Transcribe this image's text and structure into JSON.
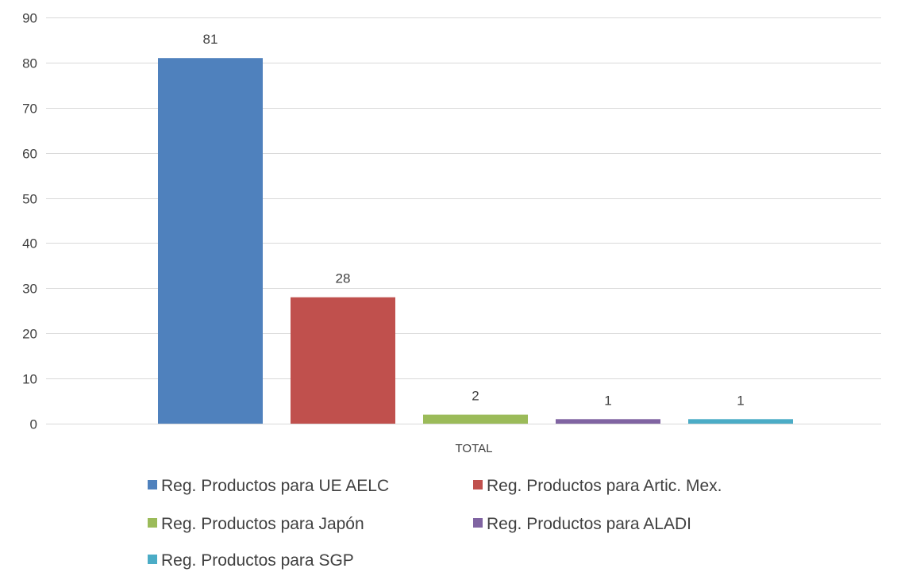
{
  "chart_data": {
    "type": "bar",
    "categories": [
      "TOTAL"
    ],
    "series": [
      {
        "name": "Reg. Productos para UE AELC",
        "values": [
          81
        ],
        "color": "#4f81bd"
      },
      {
        "name": "Reg. Productos para Artic. Mex.",
        "values": [
          28
        ],
        "color": "#c0504d"
      },
      {
        "name": "Reg. Productos para Japón",
        "values": [
          2
        ],
        "color": "#9bbb59"
      },
      {
        "name": "Reg. Productos para ALADI",
        "values": [
          1
        ],
        "color": "#8064a2"
      },
      {
        "name": "Reg. Productos para SGP",
        "values": [
          1
        ],
        "color": "#4bacc6"
      }
    ],
    "ylim": [
      0,
      90
    ],
    "yticks": [
      0,
      10,
      20,
      30,
      40,
      50,
      60,
      70,
      80,
      90
    ],
    "grid": true,
    "legend": "bottom",
    "data_labels": true
  }
}
